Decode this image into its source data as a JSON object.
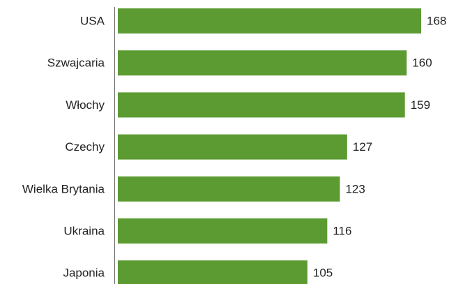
{
  "chart_data": {
    "type": "bar",
    "orientation": "horizontal",
    "categories": [
      "USA",
      "Szwajcaria",
      "Włochy",
      "Czechy",
      "Wielka Brytania",
      "Ukraina",
      "Japonia"
    ],
    "values": [
      168,
      160,
      159,
      127,
      123,
      116,
      105
    ],
    "color": "#5b9b32"
  }
}
